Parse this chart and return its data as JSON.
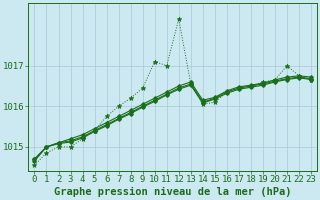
{
  "xlabel": "Graphe pression niveau de la mer (hPa)",
  "hours": [
    0,
    1,
    2,
    3,
    4,
    5,
    6,
    7,
    8,
    9,
    10,
    11,
    12,
    13,
    14,
    15,
    16,
    17,
    18,
    19,
    20,
    21,
    22,
    23
  ],
  "series_dotted": [
    1014.55,
    1014.85,
    1015.0,
    1015.0,
    1015.2,
    1015.4,
    1015.75,
    1016.0,
    1016.2,
    1016.45,
    1017.1,
    1017.0,
    1018.15,
    1016.55,
    1016.05,
    1016.1,
    1016.35,
    1016.45,
    1016.5,
    1016.6,
    1016.65,
    1017.0,
    1016.75,
    1016.65
  ],
  "series_line1": [
    1014.7,
    1015.0,
    1015.1,
    1015.15,
    1015.25,
    1015.4,
    1015.55,
    1015.7,
    1015.85,
    1016.0,
    1016.15,
    1016.3,
    1016.45,
    1016.55,
    1016.1,
    1016.2,
    1016.35,
    1016.45,
    1016.5,
    1016.55,
    1016.62,
    1016.68,
    1016.72,
    1016.68
  ],
  "series_line2": [
    1014.7,
    1015.0,
    1015.1,
    1015.2,
    1015.3,
    1015.45,
    1015.6,
    1015.75,
    1015.9,
    1016.05,
    1016.2,
    1016.35,
    1016.5,
    1016.6,
    1016.15,
    1016.22,
    1016.38,
    1016.48,
    1016.52,
    1016.57,
    1016.65,
    1016.72,
    1016.75,
    1016.72
  ],
  "series_line3": [
    1014.65,
    1015.0,
    1015.08,
    1015.12,
    1015.22,
    1015.38,
    1015.52,
    1015.68,
    1015.82,
    1015.98,
    1016.12,
    1016.28,
    1016.42,
    1016.52,
    1016.08,
    1016.18,
    1016.32,
    1016.42,
    1016.47,
    1016.52,
    1016.6,
    1016.66,
    1016.7,
    1016.66
  ],
  "ylim_min": 1014.4,
  "ylim_max": 1018.55,
  "yticks": [
    1015,
    1016,
    1017
  ],
  "line_color": "#1a6e1a",
  "bg_color": "#cce8f0",
  "grid_color": "#aac8d8",
  "xlabel_fontsize": 7.5,
  "tick_fontsize": 6.5
}
